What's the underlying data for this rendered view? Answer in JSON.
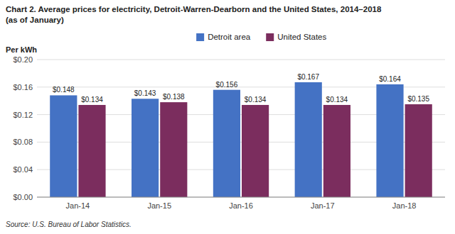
{
  "chart_data": {
    "type": "bar",
    "title": "Chart 2. Average prices for electricity, Detroit-Warren-Dearborn and the United States, 2014–2018",
    "subtitle": "(as of January)",
    "ylabel": "Per kWh",
    "source": "Source: U.S. Bureau of Labor Statistics.",
    "categories": [
      "Jan-14",
      "Jan-15",
      "Jan-16",
      "Jan-17",
      "Jan-18"
    ],
    "series": [
      {
        "name": "Detroit area",
        "color": "#4472C4",
        "values": [
          0.148,
          0.143,
          0.156,
          0.167,
          0.164
        ],
        "value_labels": [
          "$0.148",
          "$0.143",
          "$0.156",
          "$0.167",
          "$0.164"
        ]
      },
      {
        "name": "United States",
        "color": "#7B2D5E",
        "values": [
          0.134,
          0.138,
          0.134,
          0.134,
          0.135
        ],
        "value_labels": [
          "$0.134",
          "$0.138",
          "$0.134",
          "$0.134",
          "$0.135"
        ]
      }
    ],
    "ylim": [
      0,
      0.2
    ],
    "yticks": [
      {
        "value": 0.0,
        "label": "$0.00"
      },
      {
        "value": 0.04,
        "label": "$0.04"
      },
      {
        "value": 0.08,
        "label": "$0.08"
      },
      {
        "value": 0.12,
        "label": "$0.12"
      },
      {
        "value": 0.16,
        "label": "$0.16"
      },
      {
        "value": 0.2,
        "label": "$0.20"
      }
    ],
    "grid": true,
    "legend": "top",
    "data_labels": true
  }
}
